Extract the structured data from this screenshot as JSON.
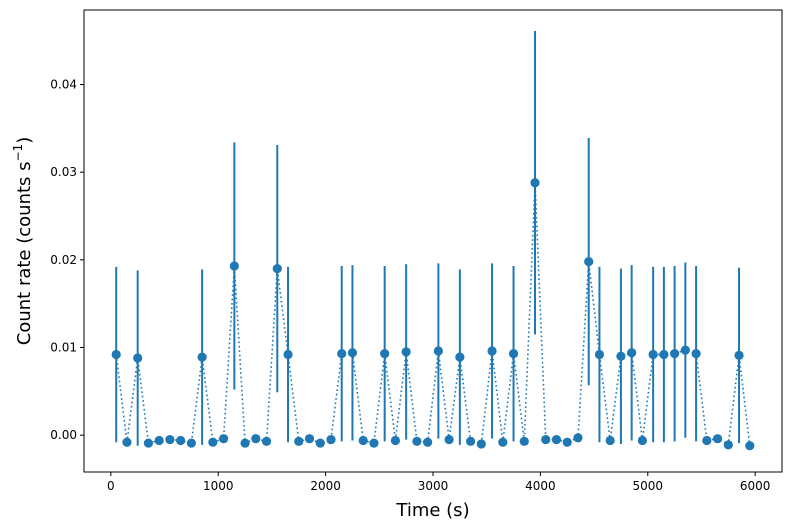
{
  "chart_data": {
    "type": "scatter",
    "xlabel": "Time (s)",
    "ylabel_main": "Count rate (counts s",
    "ylabel_sup": "−1",
    "ylabel_close": ")",
    "xlim": [
      -250,
      6250
    ],
    "ylim": [
      -0.0042,
      0.0485
    ],
    "xticks": [
      0,
      1000,
      2000,
      3000,
      4000,
      5000,
      6000
    ],
    "xtick_labels": [
      "0",
      "1000",
      "2000",
      "3000",
      "4000",
      "5000",
      "6000"
    ],
    "yticks": [
      0.0,
      0.01,
      0.02,
      0.03,
      0.04
    ],
    "ytick_labels": [
      "0.00",
      "0.01",
      "0.02",
      "0.03",
      "0.04"
    ],
    "grid": false,
    "color": "#1f77b4",
    "line_style": "dotted",
    "points": [
      {
        "x": 50,
        "y": 0.0092,
        "err": 0.01
      },
      {
        "x": 150,
        "y": -0.0008,
        "err": 0
      },
      {
        "x": 250,
        "y": 0.0088,
        "err": 0.01
      },
      {
        "x": 350,
        "y": -0.0009,
        "err": 0
      },
      {
        "x": 450,
        "y": -0.0006,
        "err": 0
      },
      {
        "x": 550,
        "y": -0.0005,
        "err": 0
      },
      {
        "x": 650,
        "y": -0.0006,
        "err": 0
      },
      {
        "x": 750,
        "y": -0.0009,
        "err": 0
      },
      {
        "x": 850,
        "y": 0.0089,
        "err": 0.01
      },
      {
        "x": 950,
        "y": -0.0008,
        "err": 0
      },
      {
        "x": 1050,
        "y": -0.0004,
        "err": 0
      },
      {
        "x": 1150,
        "y": 0.0193,
        "err": 0.0141
      },
      {
        "x": 1250,
        "y": -0.0009,
        "err": 0
      },
      {
        "x": 1350,
        "y": -0.0004,
        "err": 0
      },
      {
        "x": 1450,
        "y": -0.0007,
        "err": 0
      },
      {
        "x": 1550,
        "y": 0.019,
        "err": 0.0141
      },
      {
        "x": 1650,
        "y": 0.0092,
        "err": 0.01
      },
      {
        "x": 1750,
        "y": -0.0007,
        "err": 0
      },
      {
        "x": 1850,
        "y": -0.0004,
        "err": 0
      },
      {
        "x": 1950,
        "y": -0.0009,
        "err": 0
      },
      {
        "x": 2050,
        "y": -0.0005,
        "err": 0
      },
      {
        "x": 2150,
        "y": 0.0093,
        "err": 0.01
      },
      {
        "x": 2250,
        "y": 0.0094,
        "err": 0.01
      },
      {
        "x": 2350,
        "y": -0.0006,
        "err": 0
      },
      {
        "x": 2450,
        "y": -0.0009,
        "err": 0
      },
      {
        "x": 2550,
        "y": 0.0093,
        "err": 0.01
      },
      {
        "x": 2650,
        "y": -0.0006,
        "err": 0
      },
      {
        "x": 2750,
        "y": 0.0095,
        "err": 0.01
      },
      {
        "x": 2850,
        "y": -0.0007,
        "err": 0
      },
      {
        "x": 2950,
        "y": -0.0008,
        "err": 0
      },
      {
        "x": 3050,
        "y": 0.0096,
        "err": 0.01
      },
      {
        "x": 3150,
        "y": -0.0005,
        "err": 0
      },
      {
        "x": 3250,
        "y": 0.0089,
        "err": 0.01
      },
      {
        "x": 3350,
        "y": -0.0007,
        "err": 0
      },
      {
        "x": 3450,
        "y": -0.001,
        "err": 0
      },
      {
        "x": 3550,
        "y": 0.0096,
        "err": 0.01
      },
      {
        "x": 3650,
        "y": -0.0008,
        "err": 0
      },
      {
        "x": 3750,
        "y": 0.0093,
        "err": 0.01
      },
      {
        "x": 3850,
        "y": -0.0007,
        "err": 0
      },
      {
        "x": 3950,
        "y": 0.0288,
        "err": 0.0173
      },
      {
        "x": 4050,
        "y": -0.0005,
        "err": 0
      },
      {
        "x": 4150,
        "y": -0.0005,
        "err": 0
      },
      {
        "x": 4250,
        "y": -0.0008,
        "err": 0
      },
      {
        "x": 4350,
        "y": -0.0003,
        "err": 0
      },
      {
        "x": 4450,
        "y": 0.0198,
        "err": 0.0141
      },
      {
        "x": 4550,
        "y": 0.0092,
        "err": 0.01
      },
      {
        "x": 4650,
        "y": -0.0006,
        "err": 0
      },
      {
        "x": 4750,
        "y": 0.009,
        "err": 0.01
      },
      {
        "x": 4850,
        "y": 0.0094,
        "err": 0.01
      },
      {
        "x": 4950,
        "y": -0.0006,
        "err": 0
      },
      {
        "x": 5050,
        "y": 0.0092,
        "err": 0.01
      },
      {
        "x": 5150,
        "y": 0.0092,
        "err": 0.01
      },
      {
        "x": 5250,
        "y": 0.0093,
        "err": 0.01
      },
      {
        "x": 5350,
        "y": 0.0097,
        "err": 0.01
      },
      {
        "x": 5450,
        "y": 0.0093,
        "err": 0.01
      },
      {
        "x": 5550,
        "y": -0.0006,
        "err": 0
      },
      {
        "x": 5650,
        "y": -0.0004,
        "err": 0
      },
      {
        "x": 5750,
        "y": -0.0011,
        "err": 0
      },
      {
        "x": 5850,
        "y": 0.0091,
        "err": 0.01
      },
      {
        "x": 5950,
        "y": -0.0012,
        "err": 0
      }
    ]
  }
}
